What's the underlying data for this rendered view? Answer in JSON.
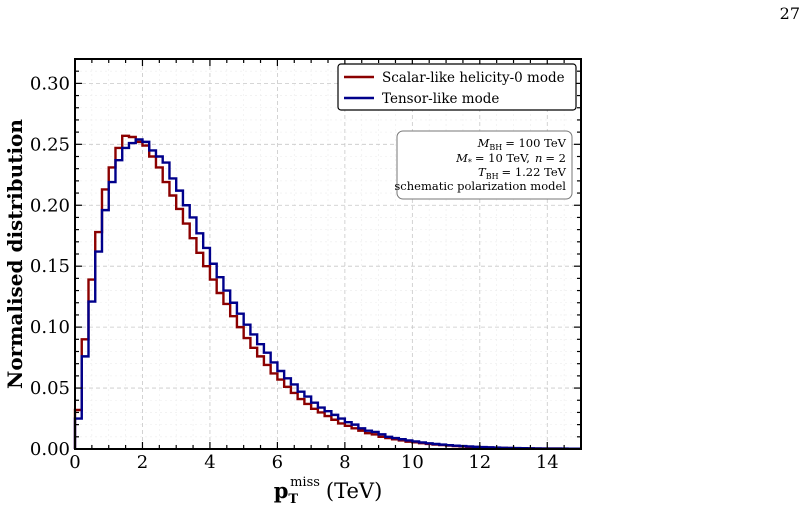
{
  "page": {
    "number": "27"
  },
  "chart_data": {
    "type": "line",
    "xlabel": "p",
    "xlabel_sub": "T",
    "xlabel_sup": "miss",
    "xlabel_unit": "(TeV)",
    "ylabel": "Normalised distribution",
    "xlim": [
      0,
      15
    ],
    "ylim": [
      0,
      0.32
    ],
    "x_ticks": [
      0,
      2,
      4,
      6,
      8,
      10,
      12,
      14
    ],
    "y_ticks": [
      0.0,
      0.05,
      0.1,
      0.15,
      0.2,
      0.25,
      0.3
    ],
    "grid": true,
    "legend_position": "top-right",
    "bin_width": 0.2,
    "series": [
      {
        "name": "Scalar-like helicity-0 mode",
        "color": "#8b0000",
        "values": [
          0.032,
          0.09,
          0.139,
          0.178,
          0.213,
          0.231,
          0.247,
          0.257,
          0.256,
          0.252,
          0.249,
          0.24,
          0.231,
          0.219,
          0.208,
          0.197,
          0.185,
          0.173,
          0.161,
          0.15,
          0.139,
          0.128,
          0.119,
          0.109,
          0.1,
          0.091,
          0.083,
          0.076,
          0.069,
          0.062,
          0.057,
          0.051,
          0.046,
          0.041,
          0.037,
          0.033,
          0.03,
          0.027,
          0.024,
          0.021,
          0.019,
          0.017,
          0.015,
          0.013,
          0.012,
          0.01,
          0.009,
          0.008,
          0.007,
          0.006,
          0.0055,
          0.0048,
          0.0042,
          0.0037,
          0.0032,
          0.0028,
          0.0024,
          0.0021,
          0.0018,
          0.0016,
          0.0014,
          0.0012,
          0.001,
          0.0009,
          0.0008,
          0.0007,
          0.0006,
          0.0005,
          0.0004,
          0.0004,
          0.0003,
          0.0003,
          0.0002,
          0.0002,
          0.0002
        ]
      },
      {
        "name": "Tensor-like mode",
        "color": "#00008b",
        "values": [
          0.025,
          0.076,
          0.121,
          0.162,
          0.196,
          0.219,
          0.237,
          0.247,
          0.251,
          0.254,
          0.252,
          0.245,
          0.24,
          0.235,
          0.222,
          0.212,
          0.2,
          0.19,
          0.177,
          0.165,
          0.152,
          0.141,
          0.13,
          0.12,
          0.111,
          0.102,
          0.094,
          0.086,
          0.079,
          0.071,
          0.064,
          0.058,
          0.053,
          0.047,
          0.043,
          0.038,
          0.034,
          0.031,
          0.028,
          0.025,
          0.022,
          0.02,
          0.017,
          0.015,
          0.014,
          0.012,
          0.01,
          0.009,
          0.008,
          0.007,
          0.0062,
          0.0054,
          0.0047,
          0.0041,
          0.0036,
          0.0031,
          0.0027,
          0.0024,
          0.0021,
          0.0018,
          0.0016,
          0.0014,
          0.0012,
          0.001,
          0.0009,
          0.0008,
          0.0007,
          0.0006,
          0.0005,
          0.0004,
          0.0004,
          0.0003,
          0.0003,
          0.0002,
          0.0002
        ]
      }
    ],
    "info_box": [
      {
        "label": "M",
        "sub": "BH",
        "value": "= 100 TeV"
      },
      {
        "label": "M",
        "sub": "*",
        "value": "= 10 TeV,",
        "extra_label": "n",
        "extra_value": "= 2"
      },
      {
        "label": "T",
        "sub": "BH",
        "value": "= 1.22 TeV"
      },
      {
        "label": "schematic polarization model"
      }
    ]
  }
}
